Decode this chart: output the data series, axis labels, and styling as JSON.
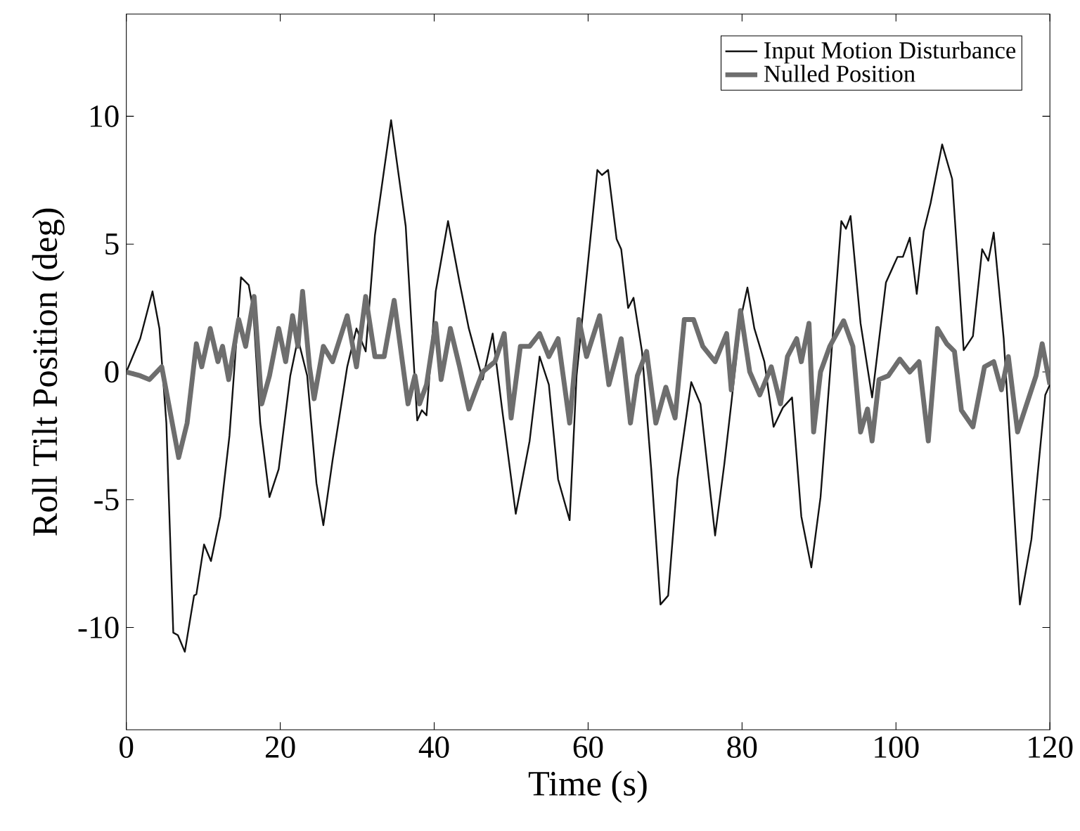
{
  "chart_data": {
    "type": "line",
    "xlabel": "Time (s)",
    "ylabel": "Roll Tilt Position (deg)",
    "xlim": [
      0,
      120
    ],
    "ylim": [
      -14,
      14
    ],
    "xticks": [
      0,
      20,
      40,
      60,
      80,
      100,
      120
    ],
    "yticks": [
      -10,
      -5,
      0,
      5,
      10
    ],
    "grid": false,
    "legend": "top right",
    "marker": "none",
    "line_style": "solid",
    "series": [
      {
        "name": "Input Motion Disturbance",
        "color": "#111111",
        "x": [
          0,
          1.8,
          3.4,
          4.3,
          5.2,
          6.1,
          6.7,
          7.6,
          8.8,
          9.1,
          10.1,
          11.0,
          12.2,
          13.4,
          14.9,
          15.9,
          16.5,
          17.4,
          18.6,
          19.8,
          21.3,
          22.3,
          23.5,
          24.7,
          25.6,
          26.8,
          28.7,
          29.9,
          31.1,
          32.3,
          34.4,
          36.3,
          37.2,
          37.8,
          38.4,
          39.0,
          40.2,
          41.8,
          43.3,
          44.5,
          46.3,
          47.6,
          48.8,
          50.6,
          52.4,
          53.7,
          54.9,
          56.1,
          57.6,
          58.5,
          61.2,
          61.8,
          62.6,
          63.7,
          64.3,
          65.2,
          65.9,
          67.0,
          68.2,
          69.4,
          70.4,
          71.6,
          73.4,
          74.6,
          76.5,
          77.7,
          78.6,
          79.8,
          80.7,
          81.6,
          82.9,
          84.1,
          85.3,
          86.5,
          87.7,
          89.0,
          90.2,
          91.4,
          92.9,
          93.5,
          94.1,
          95.4,
          96.9,
          98.7,
          100.2,
          100.9,
          101.8,
          102.7,
          103.6,
          104.5,
          106.0,
          107.3,
          108.8,
          110.0,
          111.2,
          112.0,
          112.7,
          114.0,
          116.1,
          117.6,
          119.4,
          120
        ],
        "values": [
          0,
          1.3,
          3.15,
          1.7,
          -2,
          -10.2,
          -10.3,
          -10.95,
          -8.75,
          -8.7,
          -6.75,
          -7.4,
          -5.65,
          -2.5,
          3.7,
          3.4,
          2.4,
          -2,
          -4.9,
          -3.8,
          -0.15,
          1.3,
          -0.15,
          -4.35,
          -6,
          -3.45,
          0.2,
          1.7,
          0.8,
          5.35,
          9.85,
          5.7,
          1.1,
          -1.9,
          -1.5,
          -1.7,
          3.15,
          5.9,
          3.5,
          1.7,
          -0.3,
          1.5,
          -1.4,
          -5.55,
          -2.7,
          0.6,
          -0.5,
          -4.2,
          -5.8,
          -0.15,
          7.9,
          7.7,
          7.9,
          5.2,
          4.8,
          2.5,
          2.9,
          0.8,
          -3.8,
          -9.1,
          -8.75,
          -4.2,
          -0.4,
          -1.25,
          -6.4,
          -3.6,
          -1.25,
          2.05,
          3.3,
          1.7,
          0.4,
          -2.15,
          -1.4,
          -1.0,
          -5.65,
          -7.65,
          -4.9,
          -0.15,
          5.9,
          5.6,
          6.1,
          1.9,
          -1.0,
          3.5,
          4.5,
          4.5,
          5.25,
          3.05,
          5.5,
          6.6,
          8.9,
          7.55,
          0.85,
          1.4,
          4.8,
          4.35,
          5.45,
          1.3,
          -9.1,
          -6.55,
          -0.9,
          -0.5
        ]
      },
      {
        "name": "Nulled Position",
        "color": "#6e6e6e",
        "x": [
          0,
          1.8,
          3.0,
          4.6,
          5.5,
          6.8,
          7.9,
          9.1,
          9.8,
          10.9,
          11.9,
          12.5,
          13.3,
          14.6,
          15.5,
          16.6,
          17.6,
          18.6,
          19.8,
          20.7,
          21.6,
          22.3,
          22.9,
          23.8,
          24.4,
          25.6,
          26.8,
          28.7,
          29.9,
          31.1,
          32.3,
          33.5,
          34.8,
          36.6,
          37.5,
          38.1,
          39.0,
          40.2,
          40.9,
          42.1,
          43.3,
          44.5,
          46.3,
          47.9,
          49.1,
          50.0,
          51.2,
          52.4,
          53.7,
          54.9,
          56.1,
          57.6,
          58.8,
          59.8,
          61.5,
          62.7,
          64.3,
          65.5,
          66.4,
          67.6,
          68.8,
          70.1,
          71.3,
          72.5,
          73.7,
          74.9,
          76.5,
          78.0,
          78.6,
          79.8,
          81.0,
          82.3,
          83.8,
          85.0,
          85.9,
          87.1,
          87.7,
          88.7,
          89.3,
          90.2,
          91.4,
          93.2,
          94.4,
          95.4,
          96.3,
          96.9,
          97.8,
          99.0,
          100.5,
          101.8,
          103.0,
          104.2,
          105.4,
          106.6,
          107.6,
          108.5,
          110.0,
          111.5,
          112.7,
          113.7,
          114.6,
          115.8,
          117.0,
          118.2,
          119.0,
          120.0
        ],
        "values": [
          0,
          -0.15,
          -0.3,
          0.2,
          -1.25,
          -3.35,
          -2.0,
          1.1,
          0.2,
          1.7,
          0.4,
          1.0,
          -0.3,
          2.05,
          1.0,
          2.95,
          -1.25,
          -0.15,
          1.7,
          0.4,
          2.2,
          1.0,
          3.15,
          0.2,
          -1.05,
          1.0,
          0.4,
          2.2,
          0.2,
          2.95,
          0.6,
          0.6,
          2.8,
          -1.25,
          -0.15,
          -1.25,
          -0.5,
          1.9,
          -0.3,
          1.7,
          0.2,
          -1.45,
          0,
          0.4,
          1.5,
          -1.8,
          1.0,
          1.0,
          1.5,
          0.6,
          1.3,
          -2.0,
          2.05,
          0.6,
          2.2,
          -0.5,
          1.3,
          -2.0,
          -0.15,
          0.8,
          -2.0,
          -0.6,
          -1.8,
          2.05,
          2.05,
          1.0,
          0.4,
          1.5,
          -0.7,
          2.4,
          0,
          -0.9,
          0.2,
          -1.25,
          0.6,
          1.3,
          0.4,
          1.9,
          -2.35,
          0,
          1.0,
          2.0,
          1.0,
          -2.35,
          -1.45,
          -2.7,
          -0.3,
          -0.15,
          0.5,
          0,
          0.4,
          -2.7,
          1.7,
          1.1,
          0.8,
          -1.5,
          -2.15,
          0.2,
          0.4,
          -0.7,
          0.6,
          -2.35,
          -1.25,
          -0.15,
          1.1,
          -0.5
        ]
      }
    ]
  }
}
